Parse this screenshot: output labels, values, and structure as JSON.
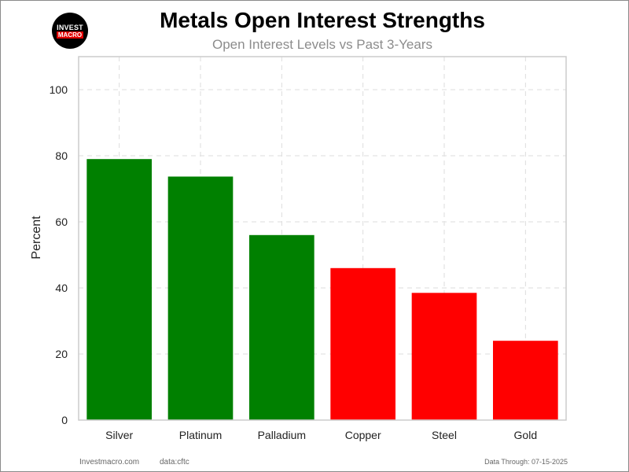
{
  "logo": {
    "line1": "INVEST",
    "line2": "MACRO"
  },
  "footer": {
    "site": "Investmacro.com",
    "source": "data:cftc",
    "date": "Data Through: 07-15-2025"
  },
  "colors": {
    "positive": "#008000",
    "negative": "#ff0000",
    "grid": "#dddddd",
    "axis": "#cccccc"
  },
  "chart_data": {
    "type": "bar",
    "title": "Metals Open Interest Strengths",
    "subtitle": "Open Interest Levels vs Past 3-Years",
    "xlabel": "",
    "ylabel": "Percent",
    "categories": [
      "Silver",
      "Platinum",
      "Palladium",
      "Copper",
      "Steel",
      "Gold"
    ],
    "values": [
      79,
      73.7,
      56,
      46,
      38.5,
      24
    ],
    "bar_colors": [
      "#008000",
      "#008000",
      "#008000",
      "#ff0000",
      "#ff0000",
      "#ff0000"
    ],
    "ylim": [
      0,
      110
    ],
    "yticks": [
      0,
      20,
      40,
      60,
      80,
      100
    ],
    "grid": true
  }
}
